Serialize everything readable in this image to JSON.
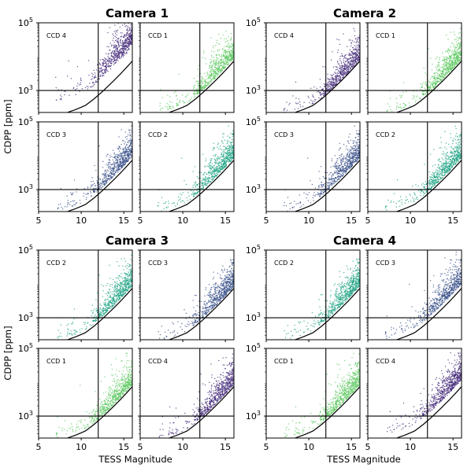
{
  "figure": {
    "ylabel": "CDPP [ppm]",
    "xlabel": "TESS Magnitude"
  },
  "chart_data": {
    "type": "scatter",
    "xlim": [
      5,
      16
    ],
    "ylim_log10": [
      2.35,
      5
    ],
    "x_ticks": [
      "5",
      "10",
      "15"
    ],
    "y_ticks": [
      {
        "base": "10",
        "exp": "5",
        "value": 100000
      },
      {
        "base": "10",
        "exp": "3",
        "value": 1000
      }
    ],
    "reference_lines": {
      "vertical_mag": 12,
      "horizontal_cdpp_ppm": 1000
    },
    "model_curve": {
      "description_free": false,
      "tmag": [
        8.5,
        9.5,
        10.5,
        11.5,
        12.5,
        13.5,
        14.5,
        15.5,
        16
      ],
      "cdpp_ppm": [
        229,
        282,
        363,
        562,
        933,
        1622,
        2884,
        5370,
        7413
      ]
    },
    "cameras": [
      {
        "title": "Camera 1",
        "panels": [
          {
            "ccd": "CCD 4",
            "color": "#472d7b",
            "density": "bright-extended",
            "offset": 0.45
          },
          {
            "ccd": "CCD 1",
            "color": "#5ec962",
            "density": "normal",
            "offset": 0.12
          },
          {
            "ccd": "CCD 3",
            "color": "#3b528b",
            "density": "normal",
            "offset": 0.15
          },
          {
            "ccd": "CCD 2",
            "color": "#21a585",
            "density": "normal",
            "offset": 0.12
          }
        ]
      },
      {
        "title": "Camera 2",
        "panels": [
          {
            "ccd": "CCD 4",
            "color": "#472d7b",
            "density": "normal",
            "offset": 0.08
          },
          {
            "ccd": "CCD 1",
            "color": "#5ec962",
            "density": "normal",
            "offset": 0.1
          },
          {
            "ccd": "CCD 3",
            "color": "#3b528b",
            "density": "normal",
            "offset": 0.12
          },
          {
            "ccd": "CCD 2",
            "color": "#21a585",
            "density": "normal",
            "offset": 0.12
          }
        ]
      },
      {
        "title": "Camera 3",
        "panels": [
          {
            "ccd": "CCD 2",
            "color": "#21a585",
            "density": "normal",
            "offset": 0.12
          },
          {
            "ccd": "CCD 3",
            "color": "#3b528b",
            "density": "normal",
            "offset": 0.1
          },
          {
            "ccd": "CCD 1",
            "color": "#5ec962",
            "density": "normal",
            "offset": 0.1
          },
          {
            "ccd": "CCD 4",
            "color": "#472d7b",
            "density": "normal",
            "offset": 0.1
          }
        ]
      },
      {
        "title": "Camera 4",
        "panels": [
          {
            "ccd": "CCD 2",
            "color": "#21a585",
            "density": "normal",
            "offset": 0.12
          },
          {
            "ccd": "CCD 3",
            "color": "#3b528b",
            "density": "normal",
            "offset": 0.18
          },
          {
            "ccd": "CCD 1",
            "color": "#5ec962",
            "density": "normal",
            "offset": 0.1
          },
          {
            "ccd": "CCD 4",
            "color": "#472d7b",
            "density": "normal",
            "offset": 0.25
          }
        ]
      }
    ]
  }
}
